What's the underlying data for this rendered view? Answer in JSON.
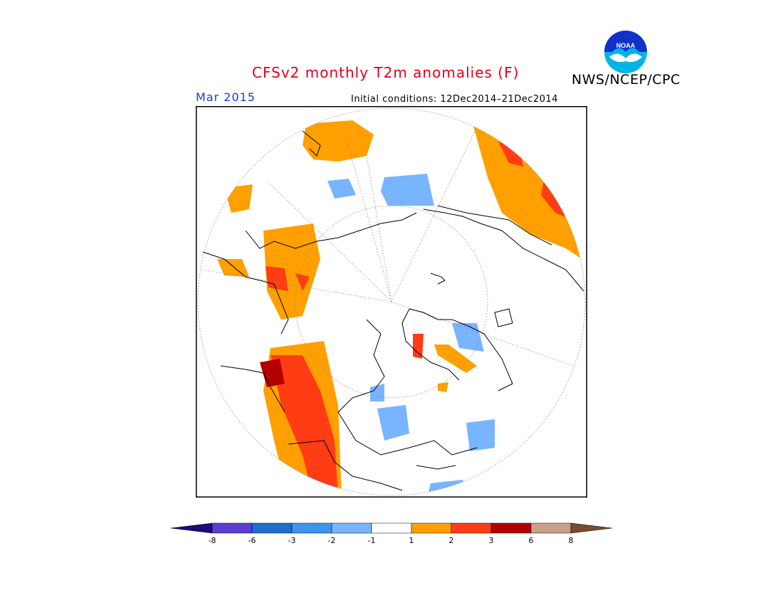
{
  "header": {
    "title": "CFSv2 monthly T2m anomalies (F)",
    "org": "NWS/NCEP/CPC",
    "logo_text": "NOAA"
  },
  "map": {
    "period": "Mar 2015",
    "initial_conditions": "Initial conditions: 12Dec2014–21Dec2014",
    "projection": "north-polar-stereographic",
    "colors": {
      "pos1": "#ffa000",
      "pos2": "#ff3c14",
      "pos3": "#b40000",
      "neg1": "#78b4ff",
      "land_outline": "#000000",
      "grid": "#888888"
    }
  },
  "colorbar": {
    "bins": [
      {
        "color": "#1e0a78",
        "label": "-8"
      },
      {
        "color": "#5a3cd2",
        "label": "-6"
      },
      {
        "color": "#1e6ed2",
        "label": "-3"
      },
      {
        "color": "#3c96f0",
        "label": "-2"
      },
      {
        "color": "#78b4ff",
        "label": "-1"
      },
      {
        "color": "#ffffff",
        "label": "1"
      },
      {
        "color": "#ffa000",
        "label": "2"
      },
      {
        "color": "#ff3c14",
        "label": "3"
      },
      {
        "color": "#b40000",
        "label": "6"
      },
      {
        "color": "#c8a08c",
        "label": "8"
      },
      {
        "color": "#7a4a32",
        "label": ""
      }
    ]
  }
}
